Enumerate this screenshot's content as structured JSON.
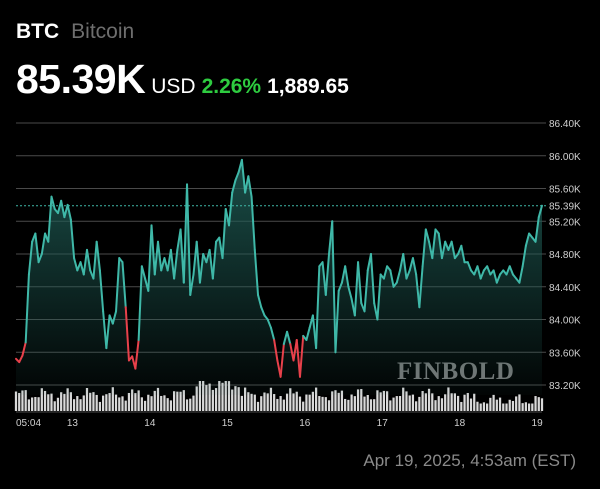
{
  "header": {
    "ticker": "BTC",
    "asset_name": "Bitcoin",
    "price": "85.39K",
    "currency": "USD",
    "change_pct": "2.26%",
    "change_abs": "1,889.65"
  },
  "footer": {
    "timestamp": "Apr 19, 2025, 4:53am (EST)"
  },
  "watermark": "FINBOLD",
  "colors": {
    "background": "#000000",
    "line": "#3fb8a8",
    "area_top": "#1f5c55",
    "down": "#e8414b",
    "positive": "#2ecc40",
    "grid": "#4a4a4a",
    "volume": "#d9d9d9"
  },
  "chart_data": {
    "type": "line",
    "title": "",
    "xlabel": "",
    "ylabel": "",
    "ylim": [
      83.05,
      86.75
    ],
    "y_ticks": [
      {
        "value": 86.4,
        "label": "86.40K"
      },
      {
        "value": 86.0,
        "label": "86.00K"
      },
      {
        "value": 85.6,
        "label": "85.60K"
      },
      {
        "value": 85.2,
        "label": "85.20K"
      },
      {
        "value": 84.8,
        "label": "84.80K"
      },
      {
        "value": 84.4,
        "label": "84.40K"
      },
      {
        "value": 84.0,
        "label": "84.00K"
      },
      {
        "value": 83.6,
        "label": "83.60K"
      },
      {
        "value": 83.2,
        "label": "83.20K"
      }
    ],
    "x_ticks": [
      {
        "t": 0.0,
        "label": "05:04"
      },
      {
        "t": 17.0,
        "label": "13"
      },
      {
        "t": 41.0,
        "label": "14"
      },
      {
        "t": 65.0,
        "label": "15"
      },
      {
        "t": 89.0,
        "label": "16"
      },
      {
        "t": 113.0,
        "label": "17"
      },
      {
        "t": 137.0,
        "label": "18"
      },
      {
        "t": 161.0,
        "label": "19"
      }
    ],
    "current_value": {
      "value": 85.39,
      "label": "85.39K"
    },
    "grid": true,
    "series": [
      {
        "values": [
          [
            0,
            83.52
          ],
          [
            1,
            83.48
          ],
          [
            2,
            83.56
          ],
          [
            3,
            83.72
          ],
          [
            4,
            84.55
          ],
          [
            5,
            84.95
          ],
          [
            6,
            85.05
          ],
          [
            7,
            84.7
          ],
          [
            8,
            84.8
          ],
          [
            9,
            85.05
          ],
          [
            10,
            84.95
          ],
          [
            11,
            85.5
          ],
          [
            12,
            85.35
          ],
          [
            13,
            85.3
          ],
          [
            14,
            85.45
          ],
          [
            15,
            85.25
          ],
          [
            16,
            85.4
          ],
          [
            17,
            85.22
          ],
          [
            18,
            84.75
          ],
          [
            19,
            84.6
          ],
          [
            20,
            84.7
          ],
          [
            21,
            84.55
          ],
          [
            22,
            84.85
          ],
          [
            23,
            84.6
          ],
          [
            24,
            84.5
          ],
          [
            25,
            84.95
          ],
          [
            26,
            84.6
          ],
          [
            27,
            84.1
          ],
          [
            28,
            83.65
          ],
          [
            29,
            84.05
          ],
          [
            30,
            83.95
          ],
          [
            31,
            84.1
          ],
          [
            32,
            84.75
          ],
          [
            33,
            84.7
          ],
          [
            34,
            84.15
          ],
          [
            35,
            83.5
          ],
          [
            36,
            83.55
          ],
          [
            37,
            83.4
          ],
          [
            38,
            83.75
          ],
          [
            39,
            84.65
          ],
          [
            40,
            84.5
          ],
          [
            41,
            84.35
          ],
          [
            42,
            85.15
          ],
          [
            43,
            84.55
          ],
          [
            44,
            84.95
          ],
          [
            45,
            84.6
          ],
          [
            46,
            84.75
          ],
          [
            47,
            84.6
          ],
          [
            48,
            84.85
          ],
          [
            49,
            84.5
          ],
          [
            50,
            84.85
          ],
          [
            51,
            85.1
          ],
          [
            52,
            84.45
          ],
          [
            53,
            85.65
          ],
          [
            54,
            84.3
          ],
          [
            55,
            84.55
          ],
          [
            56,
            84.95
          ],
          [
            57,
            84.45
          ],
          [
            58,
            84.8
          ],
          [
            59,
            84.7
          ],
          [
            60,
            84.85
          ],
          [
            61,
            84.5
          ],
          [
            62,
            84.95
          ],
          [
            63,
            85.0
          ],
          [
            64,
            84.75
          ],
          [
            65,
            85.35
          ],
          [
            66,
            85.15
          ],
          [
            67,
            85.55
          ],
          [
            68,
            85.7
          ],
          [
            69,
            85.8
          ],
          [
            70,
            85.95
          ],
          [
            71,
            85.55
          ],
          [
            72,
            85.75
          ],
          [
            73,
            85.5
          ],
          [
            74,
            84.85
          ],
          [
            75,
            84.3
          ],
          [
            76,
            84.15
          ],
          [
            77,
            84.05
          ],
          [
            78,
            84.0
          ],
          [
            79,
            83.9
          ],
          [
            80,
            83.75
          ],
          [
            81,
            83.5
          ],
          [
            82,
            83.3
          ],
          [
            83,
            83.7
          ],
          [
            84,
            83.85
          ],
          [
            85,
            83.7
          ],
          [
            86,
            83.5
          ],
          [
            87,
            83.75
          ],
          [
            88,
            83.3
          ],
          [
            89,
            83.8
          ],
          [
            90,
            83.75
          ],
          [
            91,
            83.9
          ],
          [
            92,
            84.05
          ],
          [
            93,
            83.65
          ],
          [
            94,
            84.65
          ],
          [
            95,
            84.7
          ],
          [
            96,
            84.3
          ],
          [
            97,
            84.8
          ],
          [
            98,
            85.2
          ],
          [
            99,
            83.6
          ],
          [
            100,
            84.35
          ],
          [
            101,
            84.45
          ],
          [
            102,
            84.65
          ],
          [
            103,
            84.4
          ],
          [
            104,
            84.25
          ],
          [
            105,
            84.05
          ],
          [
            106,
            84.7
          ],
          [
            107,
            84.2
          ],
          [
            108,
            84.1
          ],
          [
            109,
            84.6
          ],
          [
            110,
            84.8
          ],
          [
            111,
            84.2
          ],
          [
            112,
            84.0
          ],
          [
            113,
            84.55
          ],
          [
            114,
            84.5
          ],
          [
            115,
            84.65
          ],
          [
            116,
            84.6
          ],
          [
            117,
            84.4
          ],
          [
            118,
            84.45
          ],
          [
            119,
            84.6
          ],
          [
            120,
            84.8
          ],
          [
            121,
            84.5
          ],
          [
            122,
            84.6
          ],
          [
            123,
            84.75
          ],
          [
            124,
            84.55
          ],
          [
            125,
            84.15
          ],
          [
            126,
            84.65
          ],
          [
            127,
            85.1
          ],
          [
            128,
            84.95
          ],
          [
            129,
            84.75
          ],
          [
            130,
            85.1
          ],
          [
            131,
            85.05
          ],
          [
            132,
            84.75
          ],
          [
            133,
            84.95
          ],
          [
            134,
            84.85
          ],
          [
            135,
            84.95
          ],
          [
            136,
            84.75
          ],
          [
            137,
            84.8
          ],
          [
            138,
            84.9
          ],
          [
            139,
            84.7
          ],
          [
            140,
            84.7
          ],
          [
            141,
            84.6
          ],
          [
            142,
            84.55
          ],
          [
            143,
            84.65
          ],
          [
            144,
            84.5
          ],
          [
            145,
            84.6
          ],
          [
            146,
            84.65
          ],
          [
            147,
            84.55
          ],
          [
            148,
            84.6
          ],
          [
            149,
            84.45
          ],
          [
            150,
            84.55
          ],
          [
            151,
            84.6
          ],
          [
            152,
            84.55
          ],
          [
            153,
            84.65
          ],
          [
            154,
            84.55
          ],
          [
            155,
            84.5
          ],
          [
            156,
            84.45
          ],
          [
            157,
            84.65
          ],
          [
            158,
            84.9
          ],
          [
            159,
            85.05
          ],
          [
            160,
            85.0
          ],
          [
            161,
            84.95
          ],
          [
            162,
            85.25
          ],
          [
            163,
            85.39
          ]
        ]
      }
    ]
  }
}
